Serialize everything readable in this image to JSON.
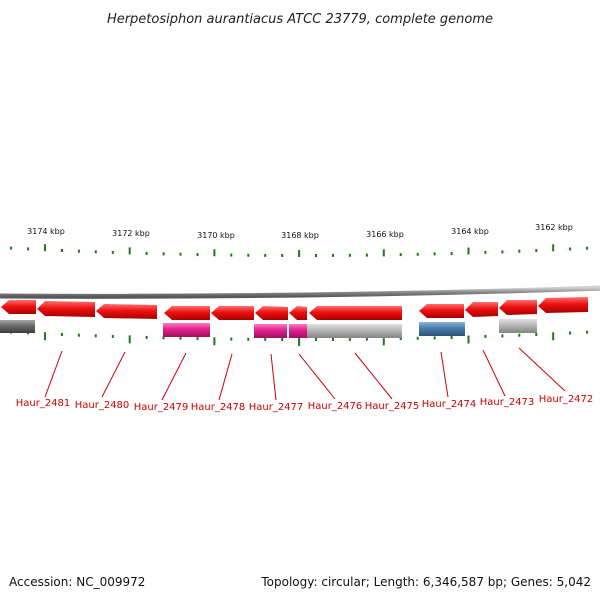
{
  "title": "Herpetosiphon aurantiacus ATCC 23779, complete genome",
  "footer": {
    "accession": "Accession: NC_009972",
    "stats": "Topology: circular; Length: 6,346,587 bp; Genes: 5,042"
  },
  "ruler_labels": [
    "3174 kbp",
    "3172 kbp",
    "3170 kbp",
    "3168 kbp",
    "3166 kbp",
    "3164 kbp",
    "3162 kbp"
  ],
  "gene_labels": [
    "Haur_2481",
    "Haur_2480",
    "Haur_2479",
    "Haur_2478",
    "Haur_2477",
    "Haur_2476",
    "Haur_2475",
    "Haur_2474",
    "Haur_2473",
    "Haur_2472"
  ],
  "colors": {
    "cds_strand": "#ee1111",
    "functional_magenta": "#e0208c",
    "functional_grey": "#b5b5b5",
    "functional_blue": "#4a7aaa",
    "functional_dark": "#6a6a6a",
    "backbone": "#8a8a8a",
    "tick": "#1a7a1a",
    "label": "#cc0000"
  }
}
